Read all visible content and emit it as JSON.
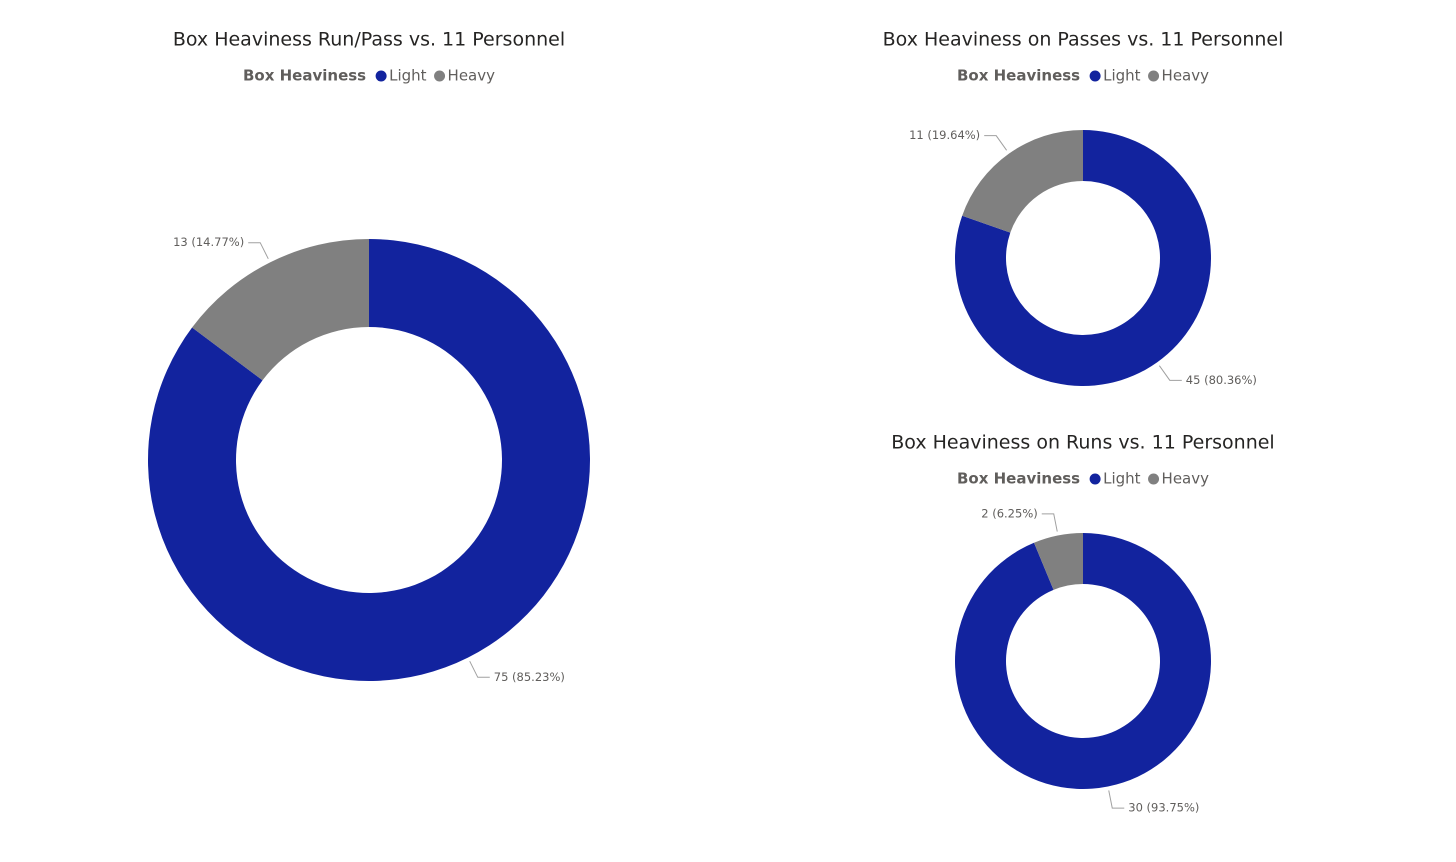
{
  "chart_data": [
    {
      "type": "donut",
      "title": "Box Heaviness Run/Pass vs. 11 Personnel",
      "legend_title": "Box Heaviness",
      "categories": [
        "Light",
        "Heavy"
      ],
      "colors": [
        "#12239e",
        "#808080"
      ],
      "values": [
        75,
        13
      ],
      "value_labels": [
        "75 (85.23%)",
        "13 (14.77%)"
      ]
    },
    {
      "type": "donut",
      "title": "Box Heaviness on Passes vs. 11 Personnel",
      "legend_title": "Box Heaviness",
      "categories": [
        "Light",
        "Heavy"
      ],
      "colors": [
        "#12239e",
        "#808080"
      ],
      "values": [
        45,
        11
      ],
      "value_labels": [
        "45 (80.36%)",
        "11 (19.64%)"
      ]
    },
    {
      "type": "donut",
      "title": "Box Heaviness on Runs vs. 11 Personnel",
      "legend_title": "Box Heaviness",
      "categories": [
        "Light",
        "Heavy"
      ],
      "colors": [
        "#12239e",
        "#808080"
      ],
      "values": [
        30,
        2
      ],
      "value_labels": [
        "30 (93.75%)",
        "2 (6.25%)"
      ]
    }
  ]
}
